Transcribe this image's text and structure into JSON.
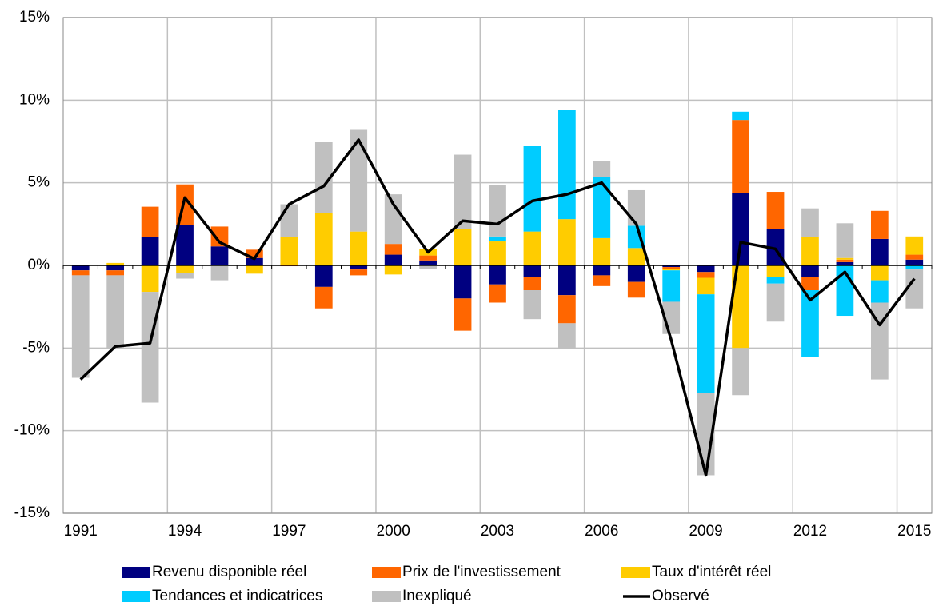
{
  "chart_data": {
    "type": "bar",
    "stacked": true,
    "categories": [
      "1991",
      null,
      null,
      "1994",
      null,
      null,
      "1997",
      null,
      null,
      "2000",
      null,
      null,
      "2003",
      null,
      null,
      "2006",
      null,
      null,
      "2009",
      null,
      null,
      "2012",
      null,
      null,
      "2015"
    ],
    "series": [
      {
        "name": "Revenu disponible réel",
        "color": "#000080",
        "values": [
          -0.3,
          -0.3,
          1.7,
          2.45,
          1.15,
          0.45,
          0,
          -1.3,
          -0.25,
          0.65,
          0.3,
          -2.0,
          -1.15,
          -0.7,
          -1.8,
          -0.6,
          -1.0,
          -0.1,
          -0.4,
          4.4,
          2.2,
          -0.7,
          0.2,
          1.6,
          0.35
        ]
      },
      {
        "name": "Prix de l'investissement",
        "color": "#ff6600",
        "values": [
          -0.3,
          -0.3,
          1.85,
          2.45,
          1.2,
          0.5,
          -0.05,
          -1.3,
          -0.35,
          0.65,
          0.3,
          -1.95,
          -1.1,
          -0.8,
          -1.7,
          -0.65,
          -0.95,
          -0.1,
          -0.35,
          4.4,
          2.25,
          -0.8,
          0.15,
          1.7,
          0.3
        ]
      },
      {
        "name": "Taux d'intérêt réel",
        "color": "#ffcc00",
        "values": [
          0,
          0.15,
          -1.6,
          -0.45,
          0,
          -0.5,
          1.7,
          3.15,
          2.05,
          -0.55,
          0.4,
          2.2,
          1.45,
          2.05,
          2.8,
          1.65,
          1.05,
          -0.1,
          -1.0,
          -5.0,
          -0.7,
          1.7,
          0.1,
          -0.9,
          1.1
        ]
      },
      {
        "name": "Tendances et indicatrices",
        "color": "#00ccff",
        "values": [
          0,
          0,
          0,
          0,
          0,
          0,
          0,
          0,
          0,
          0,
          0,
          0,
          0.3,
          5.2,
          6.6,
          3.7,
          1.35,
          -1.9,
          -5.95,
          0.5,
          -0.4,
          -4.05,
          -3.05,
          -1.35,
          -0.25
        ]
      },
      {
        "name": "Inexpliqué",
        "color": "#c0c0c0",
        "values": [
          -6.2,
          -4.4,
          -6.7,
          -0.35,
          -0.9,
          0,
          2.0,
          4.35,
          6.2,
          3.0,
          -0.2,
          4.5,
          3.1,
          -1.75,
          -1.5,
          0.95,
          2.15,
          -1.95,
          -5.0,
          -2.85,
          -2.3,
          1.75,
          2.1,
          -4.65,
          -2.35
        ]
      },
      {
        "name": "Observé",
        "type": "line",
        "color": "#000000",
        "values": [
          -6.9,
          -4.9,
          -4.7,
          4.1,
          1.4,
          0.4,
          3.7,
          4.8,
          7.6,
          3.7,
          0.8,
          2.7,
          2.5,
          3.9,
          4.3,
          5.0,
          2.5,
          -4.5,
          -12.7,
          1.4,
          1.0,
          -2.1,
          -0.4,
          -3.6,
          -0.8
        ]
      }
    ],
    "ylim": [
      -15,
      15
    ],
    "yticks": [
      {
        "value": -15,
        "label": "-15%"
      },
      {
        "value": -10,
        "label": "-10%"
      },
      {
        "value": -5,
        "label": "-5%"
      },
      {
        "value": 0,
        "label": "0%"
      },
      {
        "value": 5,
        "label": "5%"
      },
      {
        "value": 10,
        "label": "10%"
      },
      {
        "value": 15,
        "label": "15%"
      }
    ],
    "grid": true,
    "legend": "bottom"
  }
}
